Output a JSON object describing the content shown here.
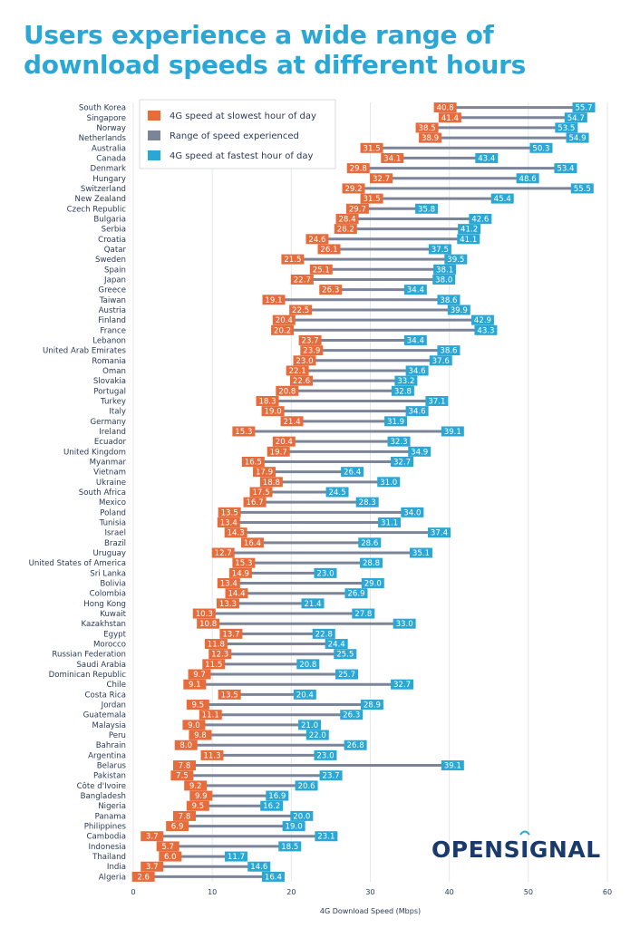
{
  "title": "Users experience a wide range of download speeds at different hours",
  "logo": {
    "text": "OPENSIGNAL"
  },
  "colors": {
    "slow": "#e76c3c",
    "fast": "#2aa7d5",
    "range": "#7c8497",
    "title": "#2aa7d5",
    "text": "#2b3a57"
  },
  "chart_data": {
    "type": "range-dot",
    "title": "Users experience a wide range of download speeds at different hours",
    "xlabel": "4G Download Speed (Mbps)",
    "ylabel": "",
    "xlim": [
      0,
      60
    ],
    "xticks": [
      0,
      10,
      20,
      30,
      40,
      50,
      60
    ],
    "grid": true,
    "legend_position": "top-left",
    "series": [
      {
        "name": "4G speed at slowest hour of day",
        "key": "slow"
      },
      {
        "name": "Range of speed experienced",
        "key": "range"
      },
      {
        "name": "4G speed at fastest hour of day",
        "key": "fast"
      }
    ],
    "rows": [
      {
        "country": "South Korea",
        "slow": 40.8,
        "fast": 55.7
      },
      {
        "country": "Singapore",
        "slow": 41.4,
        "fast": 54.7
      },
      {
        "country": "Norway",
        "slow": 38.5,
        "fast": 53.5
      },
      {
        "country": "Netherlands",
        "slow": 38.9,
        "fast": 54.9
      },
      {
        "country": "Australia",
        "slow": 31.5,
        "fast": 50.3
      },
      {
        "country": "Canada",
        "slow": 34.1,
        "fast": 43.4
      },
      {
        "country": "Denmark",
        "slow": 29.8,
        "fast": 53.4
      },
      {
        "country": "Hungary",
        "slow": 32.7,
        "fast": 48.6
      },
      {
        "country": "Switzerland",
        "slow": 29.2,
        "fast": 55.5
      },
      {
        "country": "New Zealand",
        "slow": 31.5,
        "fast": 45.4
      },
      {
        "country": "Czech Republic",
        "slow": 29.7,
        "fast": 35.8
      },
      {
        "country": "Bulgaria",
        "slow": 28.4,
        "fast": 42.6
      },
      {
        "country": "Serbia",
        "slow": 28.2,
        "fast": 41.2
      },
      {
        "country": "Croatia",
        "slow": 24.6,
        "fast": 41.1
      },
      {
        "country": "Qatar",
        "slow": 26.1,
        "fast": 37.5
      },
      {
        "country": "Sweden",
        "slow": 21.5,
        "fast": 39.5
      },
      {
        "country": "Spain",
        "slow": 25.1,
        "fast": 38.1
      },
      {
        "country": "Japan",
        "slow": 22.7,
        "fast": 38.0
      },
      {
        "country": "Greece",
        "slow": 26.3,
        "fast": 34.4
      },
      {
        "country": "Taiwan",
        "slow": 19.1,
        "fast": 38.6
      },
      {
        "country": "Austria",
        "slow": 22.5,
        "fast": 39.9
      },
      {
        "country": "Finland",
        "slow": 20.4,
        "fast": 42.9
      },
      {
        "country": "France",
        "slow": 20.2,
        "fast": 43.3
      },
      {
        "country": "Lebanon",
        "slow": 23.7,
        "fast": 34.4
      },
      {
        "country": "United Arab Emirates",
        "slow": 23.9,
        "fast": 38.6
      },
      {
        "country": "Romania",
        "slow": 23.0,
        "fast": 37.6
      },
      {
        "country": "Oman",
        "slow": 22.1,
        "fast": 34.6
      },
      {
        "country": "Slovakia",
        "slow": 22.6,
        "fast": 33.2
      },
      {
        "country": "Portugal",
        "slow": 20.8,
        "fast": 32.8
      },
      {
        "country": "Turkey",
        "slow": 18.3,
        "fast": 37.1
      },
      {
        "country": "Italy",
        "slow": 19.0,
        "fast": 34.6
      },
      {
        "country": "Germany",
        "slow": 21.4,
        "fast": 31.9
      },
      {
        "country": "Ireland",
        "slow": 15.3,
        "fast": 39.1
      },
      {
        "country": "Ecuador",
        "slow": 20.4,
        "fast": 32.3
      },
      {
        "country": "United Kingdom",
        "slow": 19.7,
        "fast": 34.9
      },
      {
        "country": "Myanmar",
        "slow": 16.5,
        "fast": 32.7
      },
      {
        "country": "Vietnam",
        "slow": 17.9,
        "fast": 26.4
      },
      {
        "country": "Ukraine",
        "slow": 18.8,
        "fast": 31.0
      },
      {
        "country": "South Africa",
        "slow": 17.5,
        "fast": 24.5
      },
      {
        "country": "Mexico",
        "slow": 16.7,
        "fast": 28.3
      },
      {
        "country": "Poland",
        "slow": 13.5,
        "fast": 34.0
      },
      {
        "country": "Tunisia",
        "slow": 13.4,
        "fast": 31.1
      },
      {
        "country": "Israel",
        "slow": 14.3,
        "fast": 37.4
      },
      {
        "country": "Brazil",
        "slow": 16.4,
        "fast": 28.6
      },
      {
        "country": "Uruguay",
        "slow": 12.7,
        "fast": 35.1
      },
      {
        "country": "United States of America",
        "slow": 15.3,
        "fast": 28.8
      },
      {
        "country": "Sri Lanka",
        "slow": 14.9,
        "fast": 23.0
      },
      {
        "country": "Bolivia",
        "slow": 13.4,
        "fast": 29.0
      },
      {
        "country": "Colombia",
        "slow": 14.4,
        "fast": 26.9
      },
      {
        "country": "Hong Kong",
        "slow": 13.3,
        "fast": 21.4
      },
      {
        "country": "Kuwait",
        "slow": 10.3,
        "fast": 27.8
      },
      {
        "country": "Kazakhstan",
        "slow": 10.8,
        "fast": 33.0
      },
      {
        "country": "Egypt",
        "slow": 13.7,
        "fast": 22.8
      },
      {
        "country": "Morocco",
        "slow": 11.8,
        "fast": 24.4
      },
      {
        "country": "Russian Federation",
        "slow": 12.3,
        "fast": 25.5
      },
      {
        "country": "Saudi Arabia",
        "slow": 11.5,
        "fast": 20.8
      },
      {
        "country": "Dominican Republic",
        "slow": 9.7,
        "fast": 25.7
      },
      {
        "country": "Chile",
        "slow": 9.1,
        "fast": 32.7
      },
      {
        "country": "Costa Rica",
        "slow": 13.5,
        "fast": 20.4
      },
      {
        "country": "Jordan",
        "slow": 9.5,
        "fast": 28.9
      },
      {
        "country": "Guatemala",
        "slow": 11.1,
        "fast": 26.3
      },
      {
        "country": "Malaysia",
        "slow": 9.0,
        "fast": 21.0
      },
      {
        "country": "Peru",
        "slow": 9.8,
        "fast": 22.0
      },
      {
        "country": "Bahrain",
        "slow": 8.0,
        "fast": 26.8
      },
      {
        "country": "Argentina",
        "slow": 11.3,
        "fast": 23.0
      },
      {
        "country": "Belarus",
        "slow": 7.8,
        "fast": 39.1
      },
      {
        "country": "Pakistan",
        "slow": 7.5,
        "fast": 23.7
      },
      {
        "country": "Côte d'Ivoire",
        "slow": 9.2,
        "fast": 20.6
      },
      {
        "country": "Bangladesh",
        "slow": 9.9,
        "fast": 16.9
      },
      {
        "country": "Nigeria",
        "slow": 9.5,
        "fast": 16.2
      },
      {
        "country": "Panama",
        "slow": 7.8,
        "fast": 20.0
      },
      {
        "country": "Philippines",
        "slow": 6.9,
        "fast": 19.0
      },
      {
        "country": "Cambodia",
        "slow": 3.7,
        "fast": 23.1
      },
      {
        "country": "Indonesia",
        "slow": 5.7,
        "fast": 18.5
      },
      {
        "country": "Thailand",
        "slow": 6.0,
        "fast": 11.7
      },
      {
        "country": "India",
        "slow": 3.7,
        "fast": 14.6
      },
      {
        "country": "Algeria",
        "slow": 2.6,
        "fast": 16.4
      }
    ]
  }
}
